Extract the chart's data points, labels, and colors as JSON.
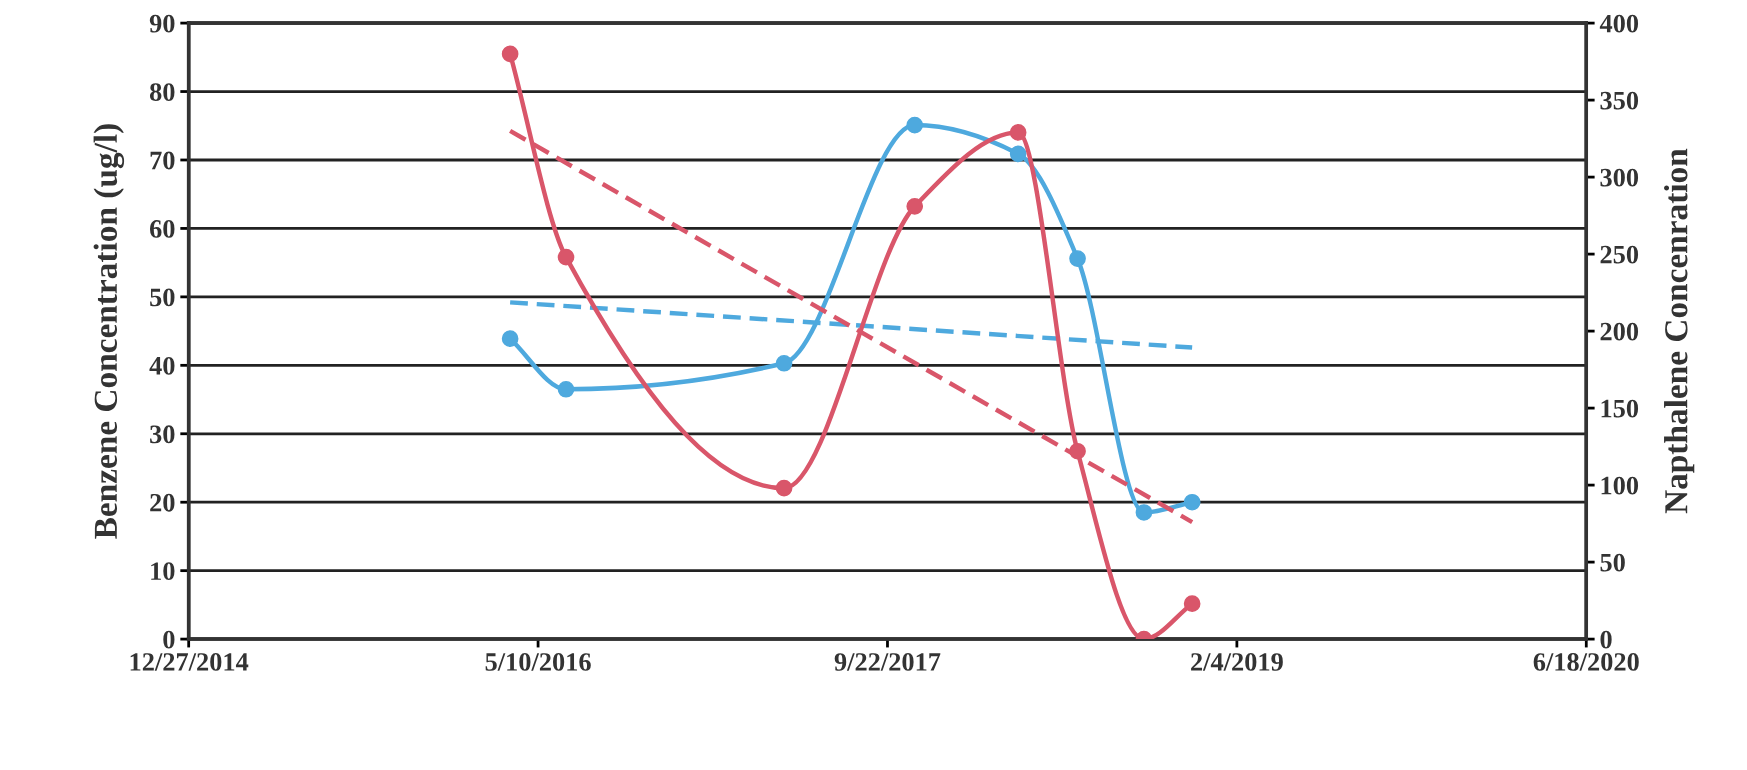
{
  "chart_data": {
    "type": "line",
    "ylabel": "Benzene Concentration (ug/l)",
    "y2label": "Napthalene Concenration",
    "xlim": [
      "2014-12-27",
      "2020-06-18"
    ],
    "xticks": [
      {
        "value": "2014-12-27",
        "label": "12/27/2014"
      },
      {
        "value": "2016-05-10",
        "label": "5/10/2016"
      },
      {
        "value": "2017-09-22",
        "label": "9/22/2017"
      },
      {
        "value": "2019-02-04",
        "label": "2/4/2019"
      },
      {
        "value": "2020-06-18",
        "label": "6/18/2020"
      }
    ],
    "ylim": [
      0,
      90
    ],
    "yticks": [
      0,
      10,
      20,
      30,
      40,
      50,
      60,
      70,
      80,
      90
    ],
    "y2lim": [
      0,
      400
    ],
    "y2ticks": [
      0,
      50,
      100,
      150,
      200,
      250,
      300,
      350,
      400
    ],
    "grid": "y",
    "legend": false,
    "series": [
      {
        "color": "#4ea9de",
        "marker": "circle",
        "line_style": "solid",
        "x": [
          "2016-03-31",
          "2016-06-19",
          "2017-04-27",
          "2017-10-31",
          "2018-03-28",
          "2018-06-21",
          "2018-09-24",
          "2018-12-02"
        ],
        "values": [
          43.9,
          36.5,
          40.3,
          75.1,
          70.9,
          55.6,
          18.5,
          20.0
        ]
      },
      {
        "color": "#d9566a",
        "marker": "circle",
        "line_style": "solid",
        "axis": "y2",
        "x": [
          "2016-03-31",
          "2016-06-19",
          "2017-04-27",
          "2017-10-31",
          "2018-03-28",
          "2018-06-21",
          "2018-09-24",
          "2018-12-02"
        ],
        "values": [
          380,
          248,
          98,
          281,
          329,
          122,
          0,
          23
        ]
      },
      {
        "color": "#4ea9de",
        "marker": "none",
        "line_style": "dashed",
        "x": [
          "2016-03-31",
          "2018-12-02"
        ],
        "values": [
          49.2,
          42.6
        ]
      },
      {
        "color": "#d9566a",
        "marker": "none",
        "line_style": "dashed",
        "axis": "y2",
        "x": [
          "2016-03-31",
          "2018-12-02"
        ],
        "values": [
          330,
          76
        ]
      }
    ]
  }
}
